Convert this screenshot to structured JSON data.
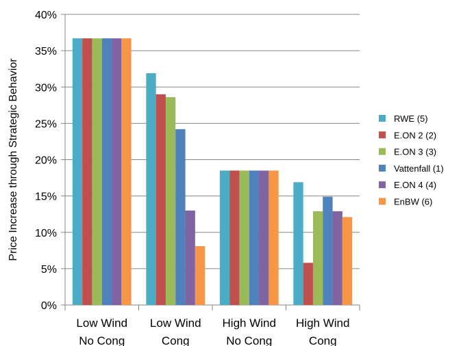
{
  "chart_data": {
    "type": "bar",
    "ylabel": "Price Increase through Strategic Behavior",
    "xlabel": "",
    "ylim": [
      0,
      40
    ],
    "y_ticks": [
      0,
      5,
      10,
      15,
      20,
      25,
      30,
      35,
      40
    ],
    "y_tick_format": "{v}%",
    "grid": "horizontal",
    "legend_position": "right",
    "categories": [
      [
        "Low Wind",
        "No Cong"
      ],
      [
        "Low Wind",
        "Cong"
      ],
      [
        "High Wind",
        "No Cong"
      ],
      [
        "High Wind",
        "Cong"
      ]
    ],
    "series": [
      {
        "name": "RWE (5)",
        "color": "#4BACC6",
        "values": [
          36.7,
          31.9,
          18.5,
          16.9
        ]
      },
      {
        "name": "E.ON 2 (2)",
        "color": "#C0504D",
        "values": [
          36.7,
          29.0,
          18.5,
          5.8
        ]
      },
      {
        "name": "E.ON 3 (3)",
        "color": "#9BBB59",
        "values": [
          36.7,
          28.6,
          18.5,
          12.9
        ]
      },
      {
        "name": "Vattenfall (1)",
        "color": "#4F81BD",
        "values": [
          36.7,
          24.2,
          18.5,
          14.9
        ]
      },
      {
        "name": "E.ON 4 (4)",
        "color": "#8064A2",
        "values": [
          36.7,
          13.0,
          18.5,
          12.9
        ]
      },
      {
        "name": "EnBW (6)",
        "color": "#F79646",
        "values": [
          36.7,
          8.1,
          18.5,
          12.1
        ]
      }
    ]
  }
}
